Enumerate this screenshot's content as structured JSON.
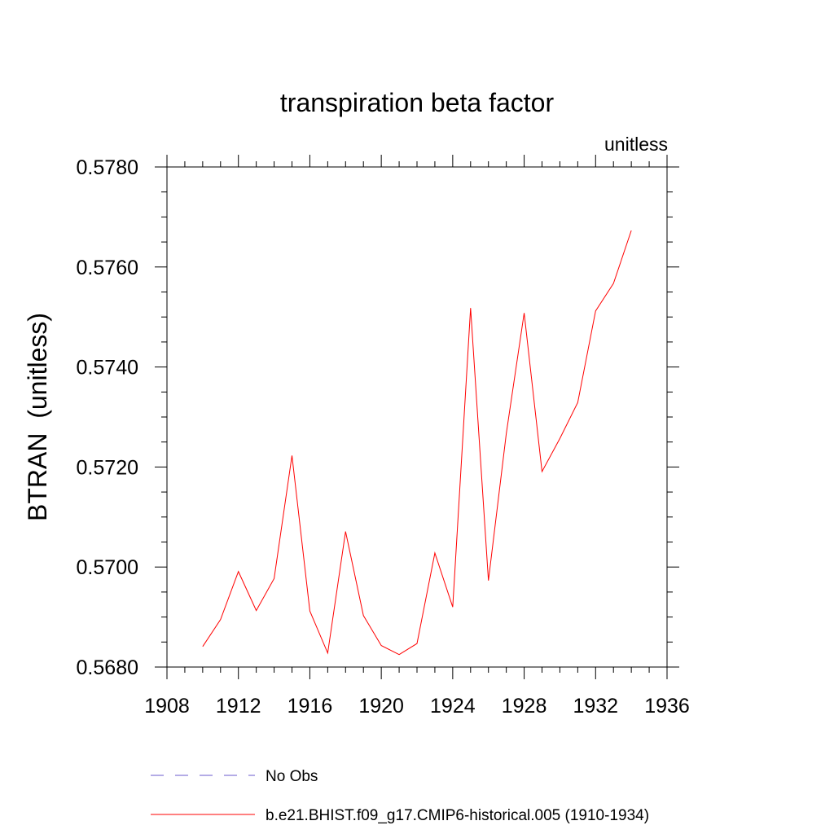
{
  "chart_data": {
    "type": "line",
    "title": "transpiration beta factor",
    "units_label": "unitless",
    "ylabel": "BTRAN  (unitless)",
    "xlabel": "",
    "xlim": [
      1908,
      1936
    ],
    "ylim": [
      0.568,
      0.578
    ],
    "x_ticks": [
      1908,
      1912,
      1916,
      1920,
      1924,
      1928,
      1932,
      1936
    ],
    "y_ticks": [
      0.568,
      0.57,
      0.572,
      0.574,
      0.576,
      0.578
    ],
    "y_tick_labels": [
      "0.5680",
      "0.5700",
      "0.5720",
      "0.5740",
      "0.5760",
      "0.5780"
    ],
    "x": [
      1910,
      1911,
      1912,
      1913,
      1914,
      1915,
      1916,
      1917,
      1918,
      1919,
      1920,
      1921,
      1922,
      1923,
      1924,
      1925,
      1926,
      1927,
      1928,
      1929,
      1930,
      1931,
      1932,
      1933,
      1934
    ],
    "series": [
      {
        "name": "b.e21.BHIST.f09_g17.CMIP6-historical.005 (1910-1934)",
        "color": "#ff0000",
        "style": "solid",
        "values": [
          0.56841,
          0.56895,
          0.56991,
          0.56913,
          0.56977,
          0.57223,
          0.56912,
          0.56828,
          0.57071,
          0.56903,
          0.56843,
          0.56825,
          0.56847,
          0.57028,
          0.5692,
          0.57518,
          0.56973,
          0.57267,
          0.57508,
          0.57191,
          0.57257,
          0.57329,
          0.57512,
          0.57567,
          0.57673
        ]
      }
    ],
    "legend": [
      {
        "label": "No Obs",
        "color": "#6a5acd",
        "style": "dashed"
      },
      {
        "label": "b.e21.BHIST.f09_g17.CMIP6-historical.005 (1910-1934)",
        "color": "#ff0000",
        "style": "solid"
      }
    ],
    "legend_position": "bottom"
  }
}
